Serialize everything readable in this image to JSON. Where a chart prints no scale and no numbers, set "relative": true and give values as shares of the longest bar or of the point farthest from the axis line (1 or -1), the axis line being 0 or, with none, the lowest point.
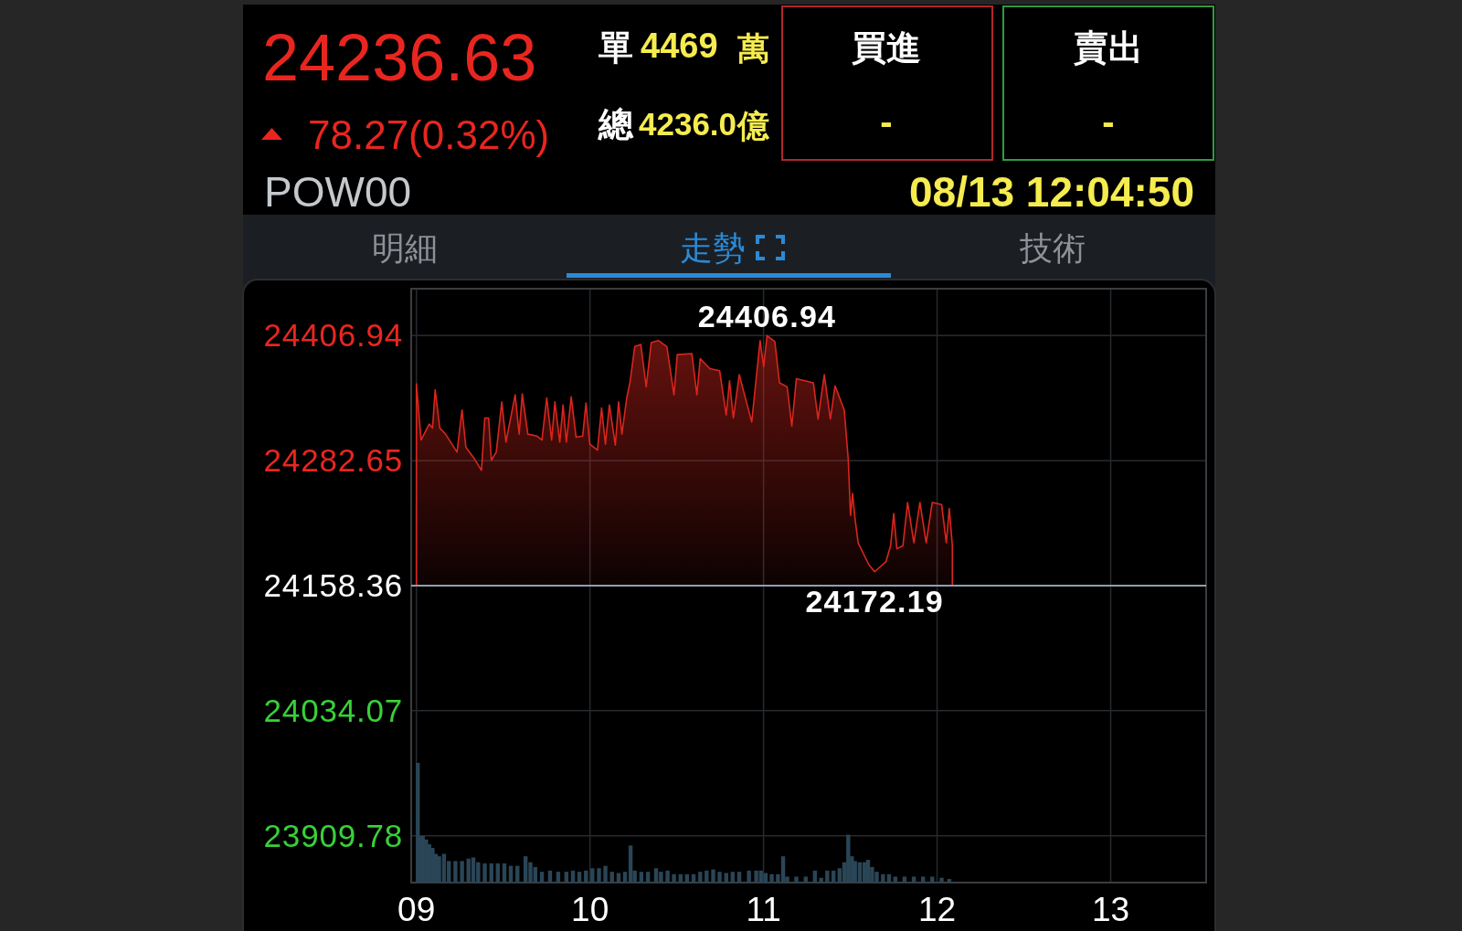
{
  "chart_data": [
    {
      "type": "other",
      "annotations": [
        "24236.63",
        "78.27(0.32%)",
        "POW00",
        "單",
        "4469",
        "萬",
        "總",
        "4236.0",
        "億",
        "買進",
        "-",
        "賣出",
        "-",
        "08/13 12:04:50",
        "明細",
        "走勢",
        "技術"
      ]
    },
    {
      "type": "area",
      "color": "#d8261e",
      "x": [
        9.0,
        9.027,
        9.074,
        9.093,
        9.108,
        9.135,
        9.168,
        9.234,
        9.263,
        9.285,
        9.328,
        9.375,
        9.394,
        9.416,
        9.432,
        9.46,
        9.492,
        9.516,
        9.569,
        9.592,
        9.61,
        9.642,
        9.695,
        9.723,
        9.751,
        9.779,
        9.798,
        9.826,
        9.845,
        9.864,
        9.892,
        9.92,
        9.958,
        9.977,
        9.999,
        10.043,
        10.067,
        10.089,
        10.112,
        10.146,
        10.165,
        10.184,
        10.212,
        10.231,
        10.258,
        10.293,
        10.324,
        10.353,
        10.394,
        10.443,
        10.484,
        10.503,
        10.587,
        10.616,
        10.635,
        10.691,
        10.747,
        10.785,
        10.804,
        10.826,
        10.86,
        10.932,
        10.98,
        11.001,
        11.02,
        11.065,
        11.092,
        11.136,
        11.163,
        11.189,
        11.287,
        11.314,
        11.35,
        11.385,
        11.412,
        11.465,
        11.488,
        11.501,
        11.513,
        11.527,
        11.545,
        11.607,
        11.64,
        11.705,
        11.732,
        11.75,
        11.768,
        11.803,
        11.83,
        11.866,
        11.901,
        11.937,
        11.972,
        12.026,
        12.053,
        12.07,
        12.088
      ],
      "values": [
        24359,
        24303,
        24319,
        24315,
        24353,
        24315,
        24309,
        24291,
        24333,
        24296,
        24286,
        24273,
        24325,
        24325,
        24283,
        24291,
        24341,
        24301,
        24348,
        24309,
        24349,
        24309,
        24307,
        24303,
        24345,
        24303,
        24341,
        24301,
        24338,
        24301,
        24346,
        24306,
        24307,
        24340,
        24299,
        24293,
        24335,
        24299,
        24338,
        24298,
        24341,
        24309,
        24345,
        24361,
        24396,
        24398,
        24356,
        24400,
        24402,
        24396,
        24348,
        24388,
        24389,
        24348,
        24384,
        24374,
        24372,
        24328,
        24362,
        24325,
        24368,
        24321,
        24402,
        24376,
        24406.94,
        24401,
        24360,
        24356,
        24317,
        24364,
        24360,
        24324,
        24368,
        24324,
        24357,
        24333,
        24284,
        24228,
        24250,
        24225,
        24201,
        24179,
        24172.19,
        24182,
        24198,
        24230,
        24195,
        24198,
        24241,
        24201,
        24241,
        24201,
        24241,
        24239,
        24201,
        24235,
        24198
      ],
      "xlim": [
        8.97,
        13.55
      ],
      "xticks": [
        {
          "value": 9,
          "label": "09"
        },
        10,
        11,
        12,
        13
      ],
      "ylim": [
        23863.2,
        24453.5
      ],
      "yticks": [
        24406.94,
        24282.65,
        24158.36,
        24034.07,
        23909.78
      ],
      "grid": true,
      "ref_lines": [
        {
          "axis": "y",
          "value": 24158.36,
          "color": "#8fa0ad"
        }
      ],
      "annotations": [
        {
          "text": "24406.94",
          "x": 11.02,
          "y": 24406.94
        },
        {
          "text": "24172.19",
          "x": 11.64,
          "y": 24172.19
        }
      ]
    },
    {
      "type": "bar",
      "relative": true,
      "color": "#2a4556",
      "xlim": [
        8.97,
        13.55
      ],
      "x": [
        9.008,
        9.018,
        9.037,
        9.056,
        9.074,
        9.093,
        9.112,
        9.131,
        9.159,
        9.187,
        9.225,
        9.263,
        9.3,
        9.328,
        9.356,
        9.394,
        9.432,
        9.469,
        9.507,
        9.544,
        9.582,
        9.629,
        9.657,
        9.685,
        9.723,
        9.77,
        9.817,
        9.864,
        9.902,
        9.939,
        9.977,
        10.014,
        10.052,
        10.089,
        10.127,
        10.165,
        10.202,
        10.234,
        10.258,
        10.296,
        10.334,
        10.381,
        10.409,
        10.447,
        10.484,
        10.522,
        10.559,
        10.597,
        10.635,
        10.672,
        10.71,
        10.747,
        10.785,
        10.822,
        10.86,
        10.916,
        10.958,
        10.985,
        11.012,
        11.047,
        11.083,
        11.113,
        11.136,
        11.189,
        11.243,
        11.296,
        11.332,
        11.367,
        11.403,
        11.438,
        11.465,
        11.488,
        11.509,
        11.527,
        11.554,
        11.581,
        11.602,
        11.625,
        11.652,
        11.688,
        11.723,
        11.759,
        11.812,
        11.866,
        11.919,
        11.972,
        12.026,
        12.07
      ],
      "values": [
        1,
        0.39,
        0.39,
        0.36,
        0.32,
        0.29,
        0.24,
        0.22,
        0.24,
        0.18,
        0.18,
        0.18,
        0.2,
        0.21,
        0.17,
        0.16,
        0.16,
        0.16,
        0.16,
        0.14,
        0.14,
        0.22,
        0.17,
        0.13,
        0.09,
        0.1,
        0.09,
        0.09,
        0.1,
        0.09,
        0.1,
        0.12,
        0.12,
        0.14,
        0.09,
        0.08,
        0.09,
        0.31,
        0.1,
        0.09,
        0.09,
        0.12,
        0.09,
        0.1,
        0.07,
        0.07,
        0.07,
        0.07,
        0.09,
        0.1,
        0.11,
        0.09,
        0.08,
        0.09,
        0.09,
        0.1,
        0.1,
        0.1,
        0.08,
        0.07,
        0.07,
        0.22,
        0.05,
        0.05,
        0.05,
        0.1,
        0.04,
        0.1,
        0.1,
        0.12,
        0.17,
        0.4,
        0.22,
        0.18,
        0.17,
        0.17,
        0.19,
        0.13,
        0.09,
        0.07,
        0.07,
        0.05,
        0.05,
        0.05,
        0.05,
        0.05,
        0.04,
        0.03
      ]
    }
  ]
}
